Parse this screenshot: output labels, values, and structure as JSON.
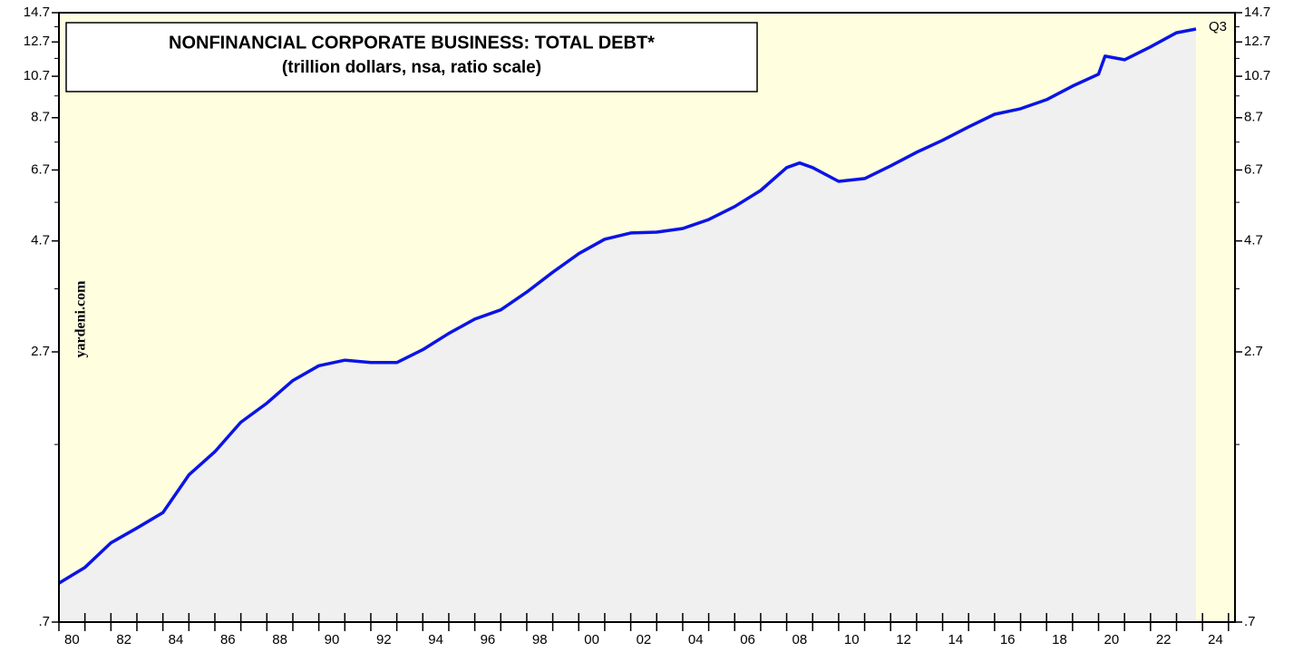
{
  "chart_data": {
    "type": "line",
    "title": "NONFINANCIAL CORPORATE BUSINESS: TOTAL DEBT*",
    "subtitle": "(trillion dollars, nsa, ratio scale)",
    "watermark": "yardeni.com",
    "end_label": "Q3",
    "color": "#0a14e6",
    "x": [
      1980,
      1981,
      1982,
      1983,
      1984,
      1985,
      1986,
      1987,
      1988,
      1989,
      1990,
      1991,
      1992,
      1993,
      1994,
      1995,
      1996,
      1997,
      1998,
      1999,
      2000,
      2001,
      2002,
      2003,
      2004,
      2005,
      2006,
      2007,
      2008,
      2008.5,
      2009,
      2010,
      2011,
      2012,
      2013,
      2014,
      2015,
      2016,
      2017,
      2018,
      2019,
      2020,
      2020.25,
      2021,
      2022,
      2023,
      2023.75
    ],
    "values": [
      0.85,
      0.92,
      1.04,
      1.12,
      1.21,
      1.46,
      1.64,
      1.9,
      2.09,
      2.34,
      2.52,
      2.59,
      2.56,
      2.56,
      2.73,
      2.96,
      3.18,
      3.33,
      3.64,
      4.02,
      4.41,
      4.74,
      4.89,
      4.91,
      5.0,
      5.23,
      5.58,
      6.05,
      6.78,
      6.94,
      6.78,
      6.33,
      6.42,
      6.84,
      7.32,
      7.77,
      8.31,
      8.85,
      9.1,
      9.52,
      10.19,
      10.81,
      11.83,
      11.62,
      12.39,
      13.3,
      13.55
    ],
    "xlim": [
      1980,
      2025.25
    ],
    "xticks": [
      1980,
      1981,
      1982,
      1983,
      1984,
      1985,
      1986,
      1987,
      1988,
      1989,
      1990,
      1991,
      1992,
      1993,
      1994,
      1995,
      1996,
      1997,
      1998,
      1999,
      2000,
      2001,
      2002,
      2003,
      2004,
      2005,
      2006,
      2007,
      2008,
      2009,
      2010,
      2011,
      2012,
      2013,
      2014,
      2015,
      2016,
      2017,
      2018,
      2019,
      2020,
      2021,
      2022,
      2023,
      2024,
      2025
    ],
    "xticklabels": [
      {
        "value": 1980.5,
        "label": "80"
      },
      {
        "value": 1982.5,
        "label": "82"
      },
      {
        "value": 1984.5,
        "label": "84"
      },
      {
        "value": 1986.5,
        "label": "86"
      },
      {
        "value": 1988.5,
        "label": "88"
      },
      {
        "value": 1990.5,
        "label": "90"
      },
      {
        "value": 1992.5,
        "label": "92"
      },
      {
        "value": 1994.5,
        "label": "94"
      },
      {
        "value": 1996.5,
        "label": "96"
      },
      {
        "value": 1998.5,
        "label": "98"
      },
      {
        "value": 2000.5,
        "label": "00"
      },
      {
        "value": 2002.5,
        "label": "02"
      },
      {
        "value": 2004.5,
        "label": "04"
      },
      {
        "value": 2006.5,
        "label": "06"
      },
      {
        "value": 2008.5,
        "label": "08"
      },
      {
        "value": 2010.5,
        "label": "10"
      },
      {
        "value": 2012.5,
        "label": "12"
      },
      {
        "value": 2014.5,
        "label": "14"
      },
      {
        "value": 2016.5,
        "label": "16"
      },
      {
        "value": 2018.5,
        "label": "18"
      },
      {
        "value": 2020.5,
        "label": "20"
      },
      {
        "value": 2022.5,
        "label": "22"
      },
      {
        "value": 2024.5,
        "label": "24"
      }
    ],
    "ylim": [
      0.7,
      14.7
    ],
    "log_scale": true,
    "yticks": [
      {
        "value": 0.7,
        "label": ".7"
      },
      2.7,
      4.7,
      6.7,
      8.7,
      10.7,
      12.7,
      14.7
    ],
    "yminorticks": [
      1.7,
      3.7,
      5.7,
      7.7,
      9.7,
      11.7,
      13.7
    ]
  }
}
